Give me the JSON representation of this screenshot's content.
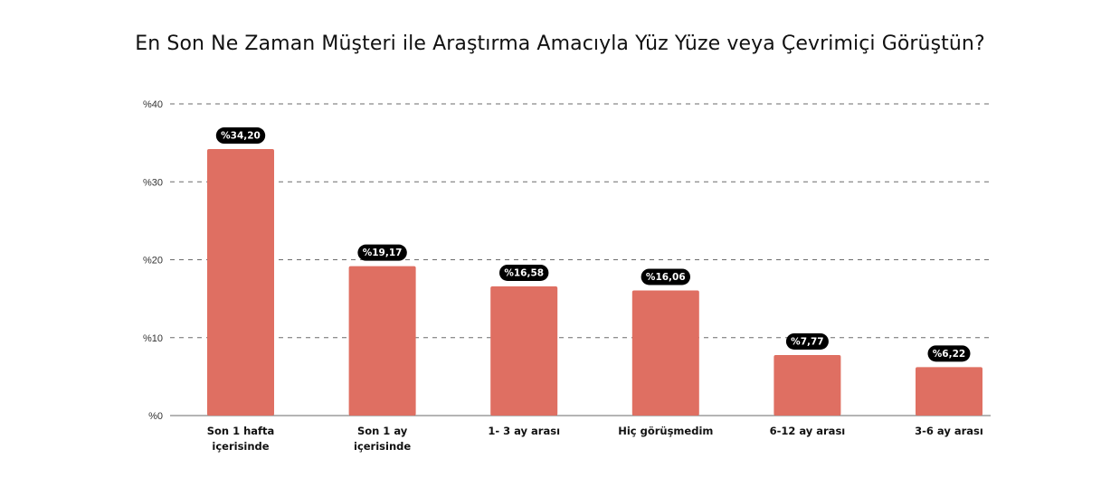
{
  "chart_data": {
    "type": "bar",
    "title": "En Son Ne Zaman Müşteri ile Araştırma Amacıyla Yüz Yüze veya Çevrimiçi Görüştün?",
    "categories": [
      [
        "Son 1 hafta",
        "içerisinde"
      ],
      [
        "Son 1 ay",
        "içerisinde"
      ],
      [
        "1- 3 ay arası"
      ],
      [
        "Hiç görüşmedim"
      ],
      [
        "6-12 ay arası"
      ],
      [
        "3-6 ay arası"
      ]
    ],
    "values": [
      34.2,
      19.17,
      16.58,
      16.06,
      7.77,
      6.22
    ],
    "value_labels": [
      "%34,20",
      "%19,17",
      "%16,58",
      "%16,06",
      "%7,77",
      "%6,22"
    ],
    "yticks": [
      0,
      10,
      20,
      30,
      40
    ],
    "ytick_labels": [
      "%0",
      "%10",
      "%20",
      "%30",
      "%40"
    ],
    "ylim": [
      0,
      40
    ],
    "grid": true,
    "bar_color": "#DF6F62",
    "label_bg_color": "#000000"
  }
}
